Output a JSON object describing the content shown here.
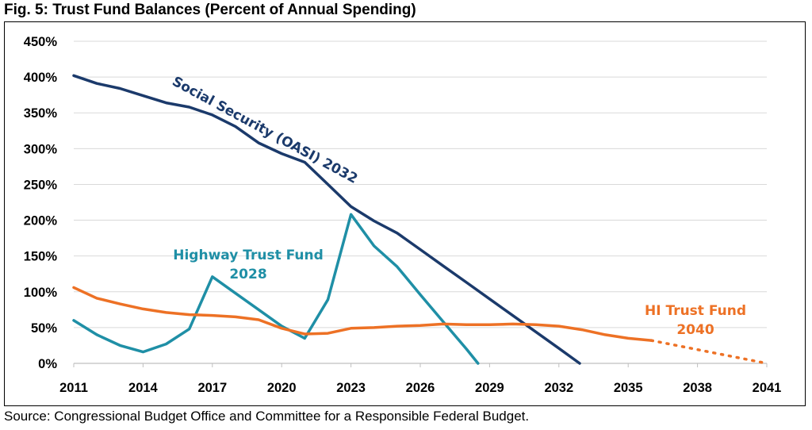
{
  "title": "Fig. 5: Trust Fund Balances (Percent of Annual Spending)",
  "source": "Source: Congressional Budget Office and Committee for a Responsible Federal Budget.",
  "chart_data": {
    "type": "line",
    "xlim": [
      2011,
      2041
    ],
    "ylim": [
      0,
      450
    ],
    "x_ticks": [
      "2011",
      "2014",
      "2017",
      "2020",
      "2023",
      "2026",
      "2029",
      "2032",
      "2035",
      "2038",
      "2041"
    ],
    "y_ticks": [
      "0%",
      "50%",
      "100%",
      "150%",
      "200%",
      "250%",
      "300%",
      "350%",
      "400%",
      "450%"
    ],
    "grid": true,
    "legend": "none",
    "series": [
      {
        "key": "oasi",
        "color": "#1b3a6b",
        "x": [
          2011,
          2012,
          2013,
          2014,
          2015,
          2016,
          2017,
          2018,
          2019,
          2020,
          2021,
          2022,
          2023,
          2024,
          2025,
          2026,
          2027,
          2028,
          2029,
          2030,
          2031,
          2032,
          2032.9
        ],
        "y": [
          402,
          391,
          384,
          374,
          364,
          358,
          347,
          331,
          308,
          293,
          281,
          250,
          219,
          199,
          182,
          159,
          136,
          113,
          90,
          67,
          44,
          21,
          0
        ]
      },
      {
        "key": "highway",
        "color": "#1f8fa6",
        "x": [
          2011,
          2012,
          2013,
          2014,
          2015,
          2016,
          2017,
          2018,
          2019,
          2020,
          2021,
          2022,
          2023,
          2024,
          2025,
          2026,
          2027,
          2028,
          2028.5
        ],
        "y": [
          60,
          40,
          25,
          16,
          27,
          48,
          121,
          98,
          75,
          52,
          35,
          89,
          208,
          164,
          135,
          96,
          58,
          20,
          0
        ]
      },
      {
        "key": "hi",
        "color": "#ed7125",
        "x": [
          2011,
          2012,
          2013,
          2014,
          2015,
          2016,
          2017,
          2018,
          2019,
          2020,
          2021,
          2022,
          2023,
          2024,
          2025,
          2026,
          2027,
          2028,
          2029,
          2030,
          2031,
          2032,
          2033,
          2034,
          2035,
          2036
        ],
        "y": [
          106,
          91,
          83,
          76,
          71,
          68,
          67,
          65,
          61,
          49,
          41,
          42,
          49,
          50,
          52,
          53,
          55,
          54,
          54,
          55,
          54,
          52,
          47,
          40,
          35,
          32
        ],
        "projection": {
          "x": [
            2036,
            2041
          ],
          "y": [
            32,
            0
          ]
        }
      }
    ],
    "annotations": [
      {
        "key": "oasi",
        "text": "Social Security (OASI) 2032",
        "color": "#1b3a6b"
      },
      {
        "key": "highway",
        "lines": [
          "Highway Trust Fund",
          "2028"
        ],
        "color": "#1f8fa6"
      },
      {
        "key": "hi",
        "lines": [
          "HI Trust Fund",
          "2040"
        ],
        "color": "#ed7125"
      }
    ]
  }
}
